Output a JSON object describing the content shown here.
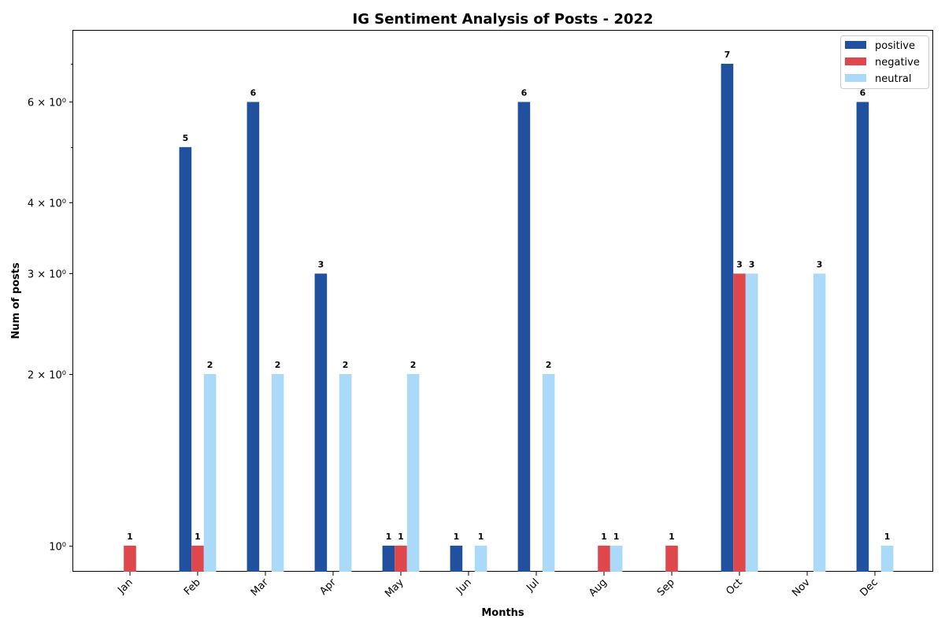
{
  "chart_data": {
    "type": "bar",
    "title": "IG Sentiment Analysis of Posts - 2022",
    "xlabel": "Months",
    "ylabel": "Num of posts",
    "yscale": "log",
    "ylim": [
      0.9,
      8.0
    ],
    "y_ticks": [
      {
        "value": 1,
        "label": "10⁰"
      },
      {
        "value": 2,
        "label": "2 × 10⁰"
      },
      {
        "value": 3,
        "label": "3 × 10⁰"
      },
      {
        "value": 4,
        "label": "4 × 10⁰"
      },
      {
        "value": 6,
        "label": "6 × 10⁰"
      }
    ],
    "y_minor_ticks": [
      5,
      7
    ],
    "categories": [
      "Jan",
      "Feb",
      "Mar",
      "Apr",
      "May",
      "Jun",
      "Jul",
      "Aug",
      "Sep",
      "Oct",
      "Nov",
      "Dec"
    ],
    "series": [
      {
        "name": "positive",
        "color": "#21519e",
        "values": [
          0,
          5,
          6,
          3,
          1,
          1,
          6,
          0,
          0,
          7,
          0,
          6
        ]
      },
      {
        "name": "negative",
        "color": "#e0474c",
        "values": [
          1,
          1,
          0,
          0,
          1,
          0,
          0,
          1,
          1,
          3,
          0,
          0
        ]
      },
      {
        "name": "neutral",
        "color": "#abd9f9",
        "values": [
          0,
          2,
          2,
          2,
          2,
          1,
          2,
          1,
          0,
          3,
          3,
          1
        ]
      }
    ],
    "legend_position": "top-right",
    "grid": false
  }
}
